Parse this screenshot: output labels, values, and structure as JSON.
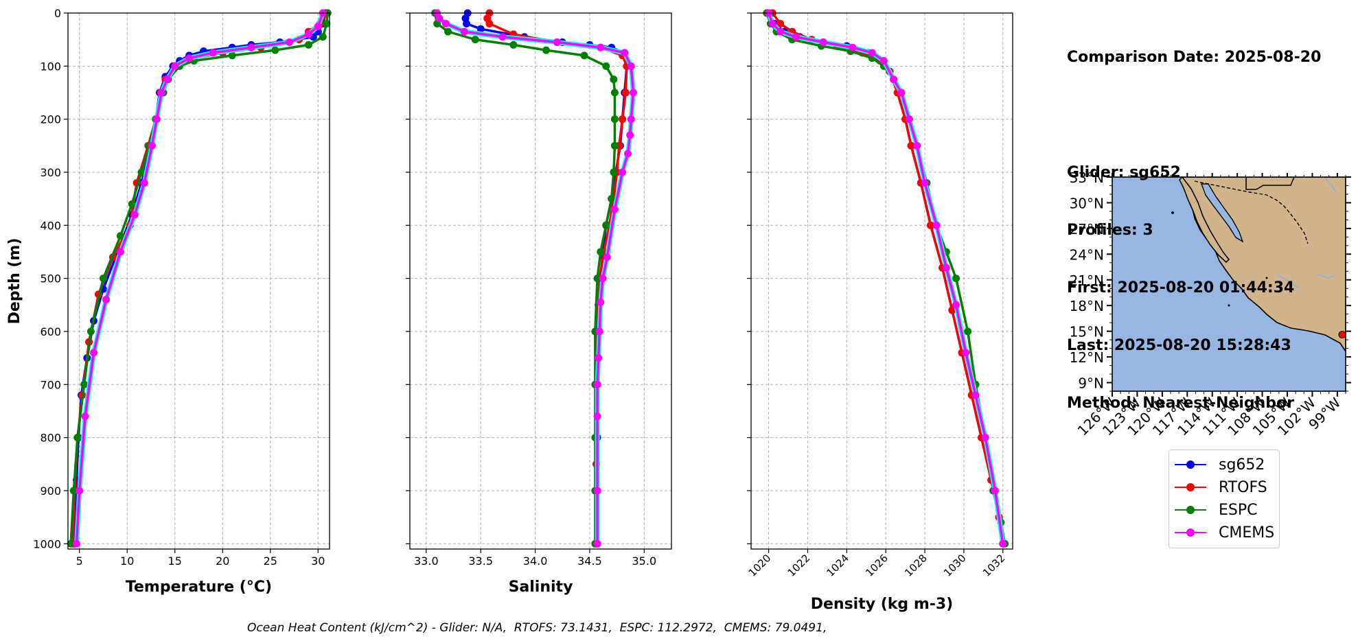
{
  "info": {
    "date_line": "Comparison Date: 2025-08-20",
    "glider_line": "Glider: sg652",
    "profiles_line": "Profiles: 3",
    "first_line": "First: 2025-08-20 01:44:34",
    "last_line": "Last: 2025-08-20 15:28:43",
    "method_line": "Method: Nearest-Neighbor"
  },
  "footer": "Ocean Heat Content (kJ/cm^2) - Glider: N/A,  RTOFS: 73.1431,  ESPC: 112.2972,  CMEMS: 79.0491,",
  "colors": {
    "sg652": "#0000ff",
    "RTOFS": "#ff0000",
    "ESPC": "#008000",
    "CMEMS": "#ff00ff",
    "CMEMS_outline": "#00ffff",
    "land": "#d2b48c",
    "ocean": "#97b6e1"
  },
  "legend": [
    {
      "name": "sg652",
      "color": "#0000ff"
    },
    {
      "name": "RTOFS",
      "color": "#ff0000"
    },
    {
      "name": "ESPC",
      "color": "#008000"
    },
    {
      "name": "CMEMS",
      "color": "#ff00ff"
    }
  ],
  "chart_data": [
    {
      "type": "line",
      "xlabel": "Temperature (°C)",
      "ylabel": "Depth (m)",
      "xlim": [
        3.8,
        31.2
      ],
      "ylim": [
        1010,
        0
      ],
      "xticks": [
        5,
        10,
        15,
        20,
        25,
        30
      ],
      "yticks": [
        0,
        100,
        200,
        300,
        400,
        500,
        600,
        700,
        800,
        900,
        1000
      ],
      "grid": true,
      "series": [
        {
          "name": "sg652",
          "x": [
            30.8,
            30.5,
            30.0,
            29.5,
            26.0,
            23.0,
            21.0,
            18.0,
            16.5,
            15.5,
            14.8,
            14.0,
            13.4,
            13.0,
            12.5,
            11.5,
            10.5,
            9.0,
            7.5,
            6.5,
            5.8,
            5.2,
            4.9,
            4.7,
            4.6,
            4.5
          ],
          "y": [
            0,
            20,
            35,
            45,
            55,
            60,
            65,
            72,
            80,
            90,
            100,
            120,
            150,
            200,
            250,
            320,
            380,
            450,
            520,
            580,
            650,
            720,
            800,
            880,
            950,
            1000
          ]
        },
        {
          "name": "RTOFS",
          "x": [
            31.0,
            30.2,
            29.0,
            28.0,
            24.0,
            20.0,
            17.0,
            15.0,
            14.0,
            13.5,
            13.0,
            12.2,
            11.0,
            10.3,
            8.5,
            7.0,
            6.0,
            5.3,
            4.8,
            4.5,
            4.3
          ],
          "y": [
            0,
            20,
            35,
            50,
            65,
            75,
            85,
            100,
            125,
            150,
            200,
            250,
            320,
            400,
            460,
            530,
            620,
            720,
            800,
            900,
            1000
          ]
        },
        {
          "name": "ESPC",
          "x": [
            31.0,
            30.9,
            30.5,
            29.0,
            25.5,
            21.0,
            17.0,
            15.5,
            14.3,
            13.8,
            13.0,
            12.3,
            11.5,
            10.5,
            9.3,
            7.5,
            6.2,
            5.5,
            4.8,
            4.4,
            4.1
          ],
          "y": [
            0,
            20,
            45,
            60,
            70,
            80,
            90,
            100,
            125,
            150,
            200,
            250,
            300,
            360,
            420,
            500,
            600,
            700,
            800,
            900,
            1000
          ]
        },
        {
          "name": "CMEMS",
          "x": [
            30.5,
            30.0,
            29.0,
            27.0,
            23.0,
            19.0,
            16.5,
            15.0,
            14.2,
            13.6,
            13.1,
            12.6,
            11.8,
            10.8,
            9.3,
            7.8,
            6.5,
            5.6,
            5.0,
            4.7
          ],
          "y": [
            0,
            25,
            40,
            55,
            65,
            75,
            85,
            100,
            125,
            150,
            200,
            250,
            320,
            380,
            450,
            540,
            640,
            760,
            900,
            1000
          ]
        }
      ]
    },
    {
      "type": "line",
      "xlabel": "Salinity",
      "xlim": [
        32.85,
        35.25
      ],
      "ylim": [
        1010,
        0
      ],
      "xticks": [
        33.0,
        33.5,
        34.0,
        34.5,
        35.0
      ],
      "yticks": [
        0,
        100,
        200,
        300,
        400,
        500,
        600,
        700,
        800,
        900,
        1000
      ],
      "grid": true,
      "series": [
        {
          "name": "sg652",
          "x": [
            33.38,
            33.36,
            33.37,
            33.5,
            33.9,
            34.25,
            34.5,
            34.7,
            34.82,
            34.84,
            34.82,
            34.8,
            34.78,
            34.74,
            34.7,
            34.65,
            34.62,
            34.6,
            34.58,
            34.57,
            34.57,
            34.57,
            34.57
          ],
          "y": [
            0,
            10,
            20,
            30,
            45,
            55,
            60,
            65,
            75,
            100,
            150,
            200,
            250,
            300,
            350,
            400,
            450,
            500,
            550,
            600,
            700,
            800,
            1000
          ]
        },
        {
          "name": "RTOFS",
          "x": [
            33.58,
            33.56,
            33.58,
            33.8,
            34.2,
            34.6,
            34.8,
            34.84,
            34.83,
            34.8,
            34.77,
            34.75,
            34.72,
            34.68,
            34.63,
            34.59,
            34.57,
            34.56,
            34.56,
            34.56
          ],
          "y": [
            0,
            10,
            20,
            40,
            55,
            65,
            80,
            100,
            150,
            200,
            250,
            300,
            350,
            400,
            450,
            500,
            600,
            700,
            850,
            1000
          ]
        },
        {
          "name": "ESPC",
          "x": [
            33.08,
            33.1,
            33.2,
            33.45,
            33.8,
            34.1,
            34.45,
            34.65,
            34.72,
            34.73,
            34.73,
            34.73,
            34.72,
            34.7,
            34.65,
            34.6,
            34.57,
            34.55,
            34.55,
            34.55,
            34.55,
            34.55
          ],
          "y": [
            0,
            20,
            35,
            50,
            60,
            70,
            80,
            100,
            125,
            150,
            200,
            250,
            300,
            350,
            400,
            450,
            500,
            600,
            700,
            800,
            900,
            1000
          ]
        },
        {
          "name": "CMEMS",
          "x": [
            33.1,
            33.12,
            33.18,
            33.35,
            33.7,
            34.2,
            34.6,
            34.82,
            34.88,
            34.9,
            34.88,
            34.87,
            34.85,
            34.8,
            34.73,
            34.66,
            34.62,
            34.6,
            34.59,
            34.58,
            34.57,
            34.57,
            34.57,
            34.57
          ],
          "y": [
            0,
            10,
            20,
            35,
            45,
            55,
            65,
            75,
            100,
            150,
            200,
            230,
            265,
            300,
            370,
            460,
            500,
            545,
            600,
            650,
            700,
            760,
            900,
            1000
          ]
        }
      ]
    },
    {
      "type": "line",
      "xlabel": "Density (kg m-3)",
      "xlim": [
        1019.1,
        1032.5
      ],
      "ylim": [
        1010,
        0
      ],
      "xticks": [
        1020,
        1022,
        1024,
        1026,
        1028,
        1030,
        1032
      ],
      "yticks": [
        0,
        100,
        200,
        300,
        400,
        500,
        600,
        700,
        800,
        900,
        1000
      ],
      "grid": true,
      "series": [
        {
          "name": "sg652",
          "x": [
            1020.0,
            1020.3,
            1020.8,
            1021.6,
            1022.8,
            1024.0,
            1025.1,
            1025.8,
            1026.2,
            1026.6,
            1027.0,
            1027.3,
            1027.8,
            1028.3,
            1028.9,
            1029.4,
            1029.9,
            1030.4,
            1030.9,
            1031.4,
            1031.8,
            1032.0
          ],
          "y": [
            0,
            20,
            35,
            45,
            55,
            62,
            75,
            90,
            110,
            150,
            200,
            250,
            320,
            400,
            480,
            560,
            640,
            720,
            800,
            880,
            950,
            1000
          ]
        },
        {
          "name": "RTOFS",
          "x": [
            1020.2,
            1020.6,
            1021.2,
            1022.2,
            1023.5,
            1024.8,
            1025.7,
            1026.2,
            1026.6,
            1027.0,
            1027.3,
            1027.8,
            1028.3,
            1028.9,
            1029.4,
            1029.9,
            1030.4,
            1030.9,
            1031.4,
            1031.8,
            1032.0
          ],
          "y": [
            0,
            20,
            35,
            50,
            62,
            75,
            90,
            110,
            150,
            200,
            250,
            320,
            400,
            480,
            560,
            640,
            720,
            800,
            880,
            950,
            1000
          ]
        },
        {
          "name": "ESPC",
          "x": [
            1019.9,
            1020.1,
            1020.4,
            1021.2,
            1022.7,
            1024.2,
            1025.3,
            1025.9,
            1026.4,
            1026.8,
            1027.2,
            1027.6,
            1028.1,
            1028.6,
            1029.1,
            1029.6,
            1030.2,
            1030.6,
            1031.1,
            1031.5,
            1031.9,
            1032.1
          ],
          "y": [
            0,
            20,
            35,
            50,
            62,
            72,
            85,
            100,
            125,
            150,
            200,
            250,
            320,
            400,
            450,
            500,
            600,
            700,
            800,
            900,
            960,
            1000
          ]
        },
        {
          "name": "CMEMS",
          "x": [
            1020.0,
            1020.2,
            1020.6,
            1021.4,
            1022.8,
            1024.3,
            1025.3,
            1025.9,
            1026.4,
            1026.8,
            1027.2,
            1027.6,
            1028.0,
            1028.6,
            1029.1,
            1029.6,
            1030.1,
            1030.6,
            1031.1,
            1031.6,
            1032.0
          ],
          "y": [
            0,
            20,
            35,
            45,
            55,
            65,
            75,
            90,
            125,
            150,
            200,
            250,
            320,
            400,
            480,
            550,
            640,
            720,
            800,
            900,
            1000
          ]
        }
      ]
    },
    {
      "type": "map",
      "lon_ticks": [
        "126°W",
        "123°W",
        "120°W",
        "117°W",
        "114°W",
        "111°W",
        "108°W",
        "105°W",
        "102°W",
        "99°W"
      ],
      "lat_ticks": [
        "33°N",
        "30°N",
        "27°N",
        "24°N",
        "21°N",
        "18°N",
        "15°N",
        "12°N",
        "9°N"
      ],
      "lon_range": [
        -126,
        -98
      ],
      "lat_range": [
        8,
        33
      ],
      "glider_position": {
        "lon": -98.4,
        "lat": 14.6
      }
    }
  ]
}
